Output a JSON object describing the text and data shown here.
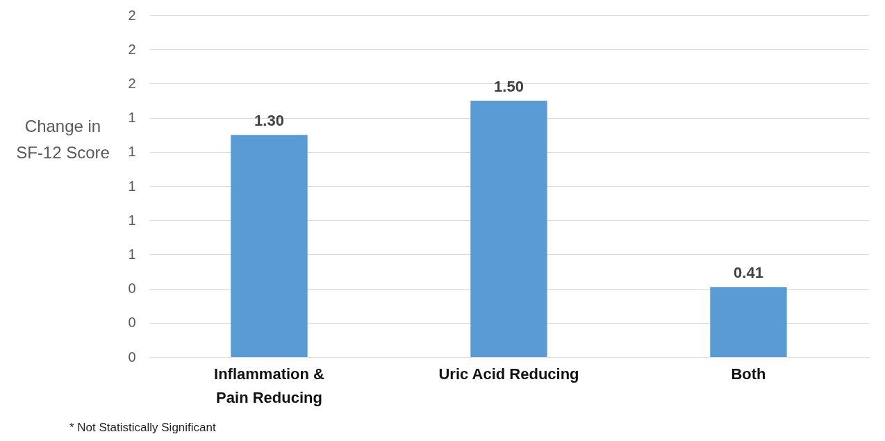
{
  "chart_data": {
    "type": "bar",
    "ylabel": "Change in SF-12 Score",
    "categories": [
      "Inflammation & Pain Reducing",
      "Uric Acid Reducing",
      "Both"
    ],
    "values": [
      1.3,
      1.5,
      0.41
    ],
    "value_labels": [
      "1.30",
      "1.50",
      "0.41"
    ],
    "color": "#5b9bd5",
    "ylim": [
      0,
      2
    ],
    "yticks": [
      {
        "value": 0,
        "label": "0"
      },
      {
        "value": 0.2,
        "label": "0"
      },
      {
        "value": 0.4,
        "label": "0"
      },
      {
        "value": 0.6,
        "label": "1"
      },
      {
        "value": 0.8,
        "label": "1"
      },
      {
        "value": 1,
        "label": "1"
      },
      {
        "value": 1.2,
        "label": "1"
      },
      {
        "value": 1.4,
        "label": "1"
      },
      {
        "value": 1.6,
        "label": "2"
      },
      {
        "value": 1.8,
        "label": "2"
      },
      {
        "value": 2,
        "label": "2"
      }
    ],
    "grid": "y",
    "annotations": [
      "* Not Statistically Significant"
    ]
  }
}
